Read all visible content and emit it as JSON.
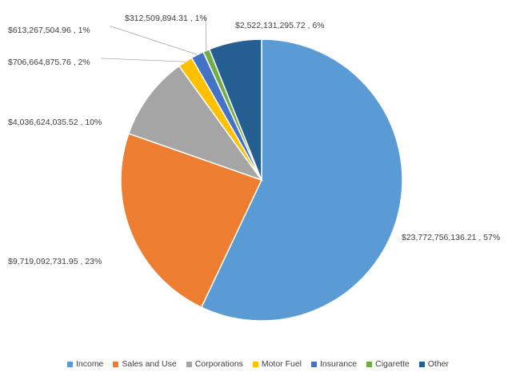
{
  "chart_data": {
    "type": "pie",
    "title": "",
    "slices": [
      {
        "name": "Income",
        "value": 23772756136.21,
        "label": "$23,772,756,136.21 , 57%",
        "color": "#5b9bd5"
      },
      {
        "name": "Sales and Use",
        "value": 9719092731.95,
        "label": "$9,719,092,731.95 , 23%",
        "color": "#ed7d31"
      },
      {
        "name": "Corporations",
        "value": 4036624035.52,
        "label": "$4,036,624,035.52 , 10%",
        "color": "#a5a5a5"
      },
      {
        "name": "Motor Fuel",
        "value": 706664875.76,
        "label": "$706,664,875.76 , 2%",
        "color": "#ffc000"
      },
      {
        "name": "Insurance",
        "value": 613267504.96,
        "label": "$613,267,504.96 , 1%",
        "color": "#4472c4"
      },
      {
        "name": "Cigarette",
        "value": 312509894.31,
        "label": "$312,509,894.31 , 1%",
        "color": "#70ad47"
      },
      {
        "name": "Other",
        "value": 2522131295.72,
        "label": "$2,522,131,295.72 , 6%",
        "color": "#255e91"
      }
    ],
    "legend_position": "bottom",
    "start_angle": "12 o'clock",
    "direction": "clockwise"
  }
}
